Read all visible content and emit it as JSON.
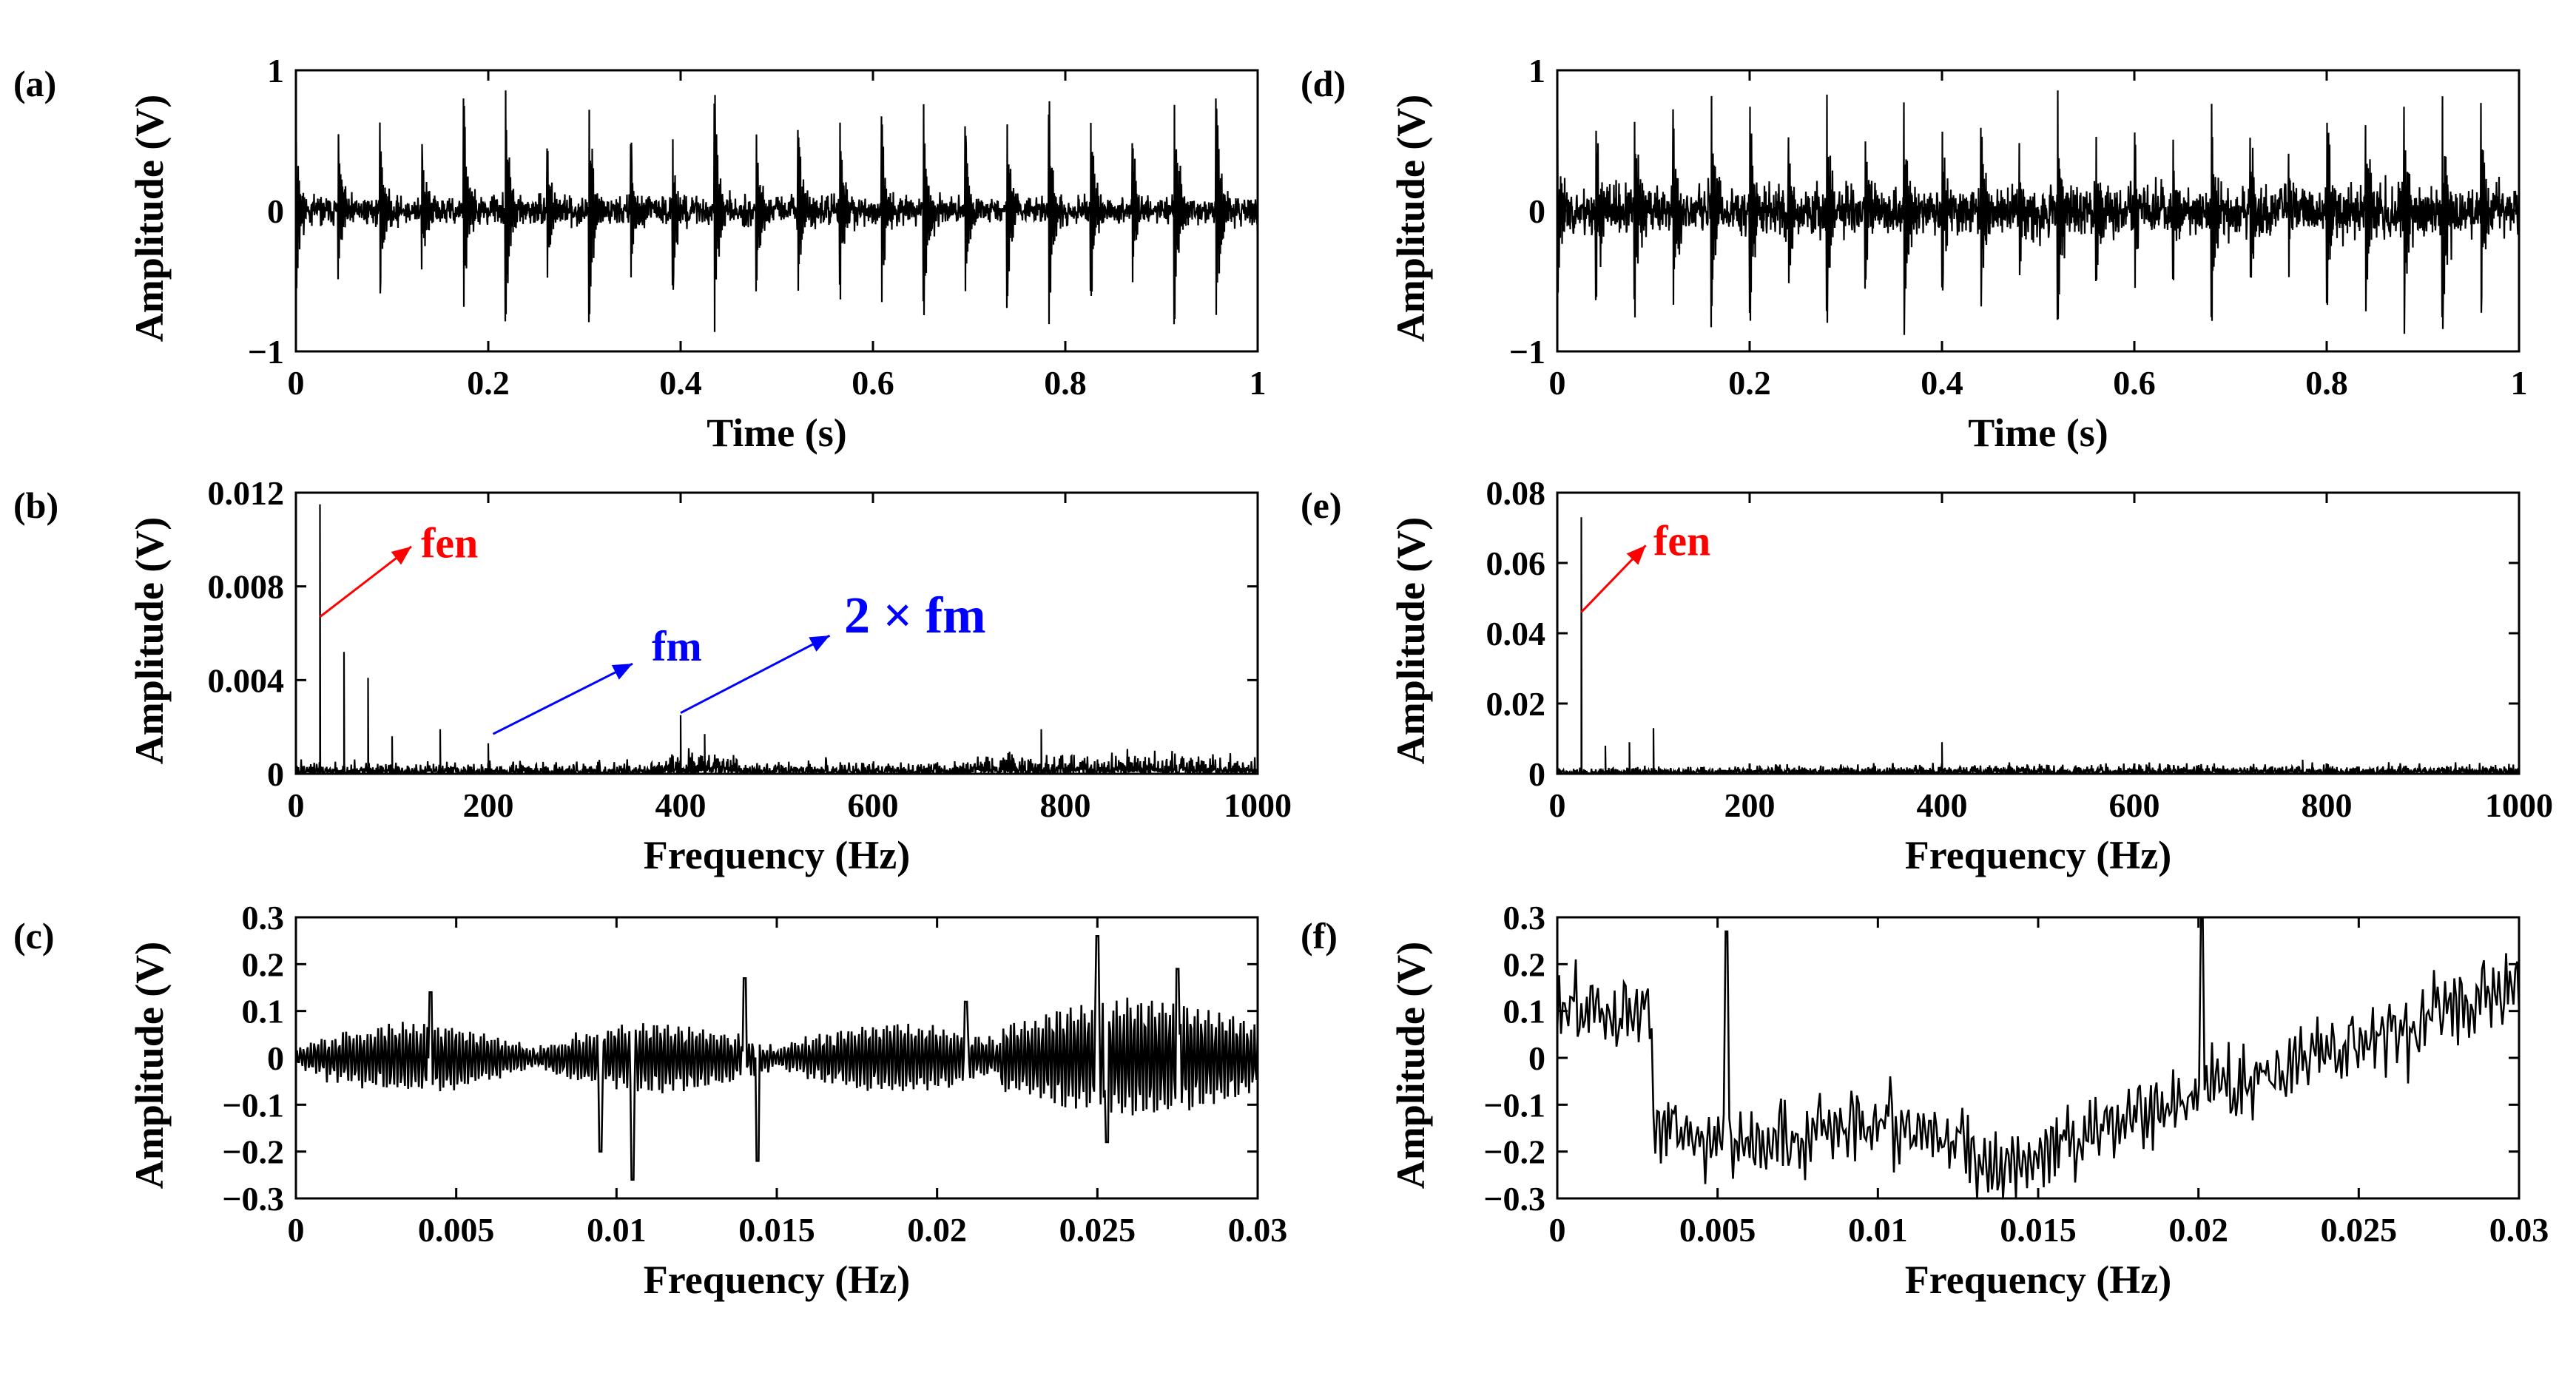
{
  "chart_data": [
    {
      "id": "a",
      "panel_label": "(a)",
      "type": "line",
      "signal": "impulse_train_time",
      "xlabel": "Time (s)",
      "ylabel": "Amplitude (V)",
      "xlim": [
        0,
        1
      ],
      "ylim": [
        -1,
        1
      ],
      "xticks": [
        0,
        0.2,
        0.4,
        0.6,
        0.8,
        1
      ],
      "xtick_labels": [
        "0",
        "0.2",
        "0.4",
        "0.6",
        "0.8",
        "1"
      ],
      "yticks": [
        -1,
        0,
        1
      ],
      "ytick_labels": [
        "−1",
        "0",
        "1"
      ],
      "annotations": []
    },
    {
      "id": "b",
      "panel_label": "(b)",
      "type": "line",
      "signal": "spectrum_low",
      "xlabel": "Frequency (Hz)",
      "ylabel": "Amplitude (V)",
      "xlim": [
        0,
        1000
      ],
      "ylim": [
        0,
        0.012
      ],
      "xticks": [
        0,
        200,
        400,
        600,
        800,
        1000
      ],
      "xtick_labels": [
        "0",
        "200",
        "400",
        "600",
        "800",
        "1000"
      ],
      "yticks": [
        0,
        0.004,
        0.008,
        0.012
      ],
      "ytick_labels": [
        "0",
        "0.004",
        "0.008",
        "0.012"
      ],
      "peaks": [
        {
          "x": 25,
          "y": 0.0115
        },
        {
          "x": 50,
          "y": 0.0052
        },
        {
          "x": 75,
          "y": 0.0041
        },
        {
          "x": 100,
          "y": 0.0016
        },
        {
          "x": 150,
          "y": 0.0019
        },
        {
          "x": 200,
          "y": 0.0013
        },
        {
          "x": 400,
          "y": 0.0025
        },
        {
          "x": 425,
          "y": 0.0017
        },
        {
          "x": 775,
          "y": 0.0019
        }
      ],
      "annotations": [
        {
          "text": "fen",
          "color": "#ff0000",
          "arrow_from": [
            25,
            0.0067
          ],
          "arrow_to": [
            120,
            0.0097
          ],
          "text_at": [
            130,
            0.0098
          ],
          "size": "normal"
        },
        {
          "text": "fm",
          "color": "#0000ff",
          "arrow_from": [
            205,
            0.0017
          ],
          "arrow_to": [
            350,
            0.0047
          ],
          "text_at": [
            370,
            0.0054
          ],
          "size": "normal"
        },
        {
          "text": "2 × fm",
          "color": "#0000ff",
          "arrow_from": [
            400,
            0.0026
          ],
          "arrow_to": [
            555,
            0.0059
          ],
          "text_at": [
            570,
            0.0066
          ],
          "size": "big"
        }
      ]
    },
    {
      "id": "c",
      "panel_label": "(c)",
      "type": "line",
      "signal": "fine_low",
      "xlabel": "Frequency (Hz)",
      "ylabel": "Amplitude (V)",
      "xlim": [
        0,
        0.03
      ],
      "ylim": [
        -0.3,
        0.3
      ],
      "xticks": [
        0,
        0.005,
        0.01,
        0.015,
        0.02,
        0.025,
        0.03
      ],
      "xtick_labels": [
        "0",
        "0.005",
        "0.01",
        "0.015",
        "0.02",
        "0.025",
        "0.03"
      ],
      "yticks": [
        -0.3,
        -0.2,
        -0.1,
        0,
        0.1,
        0.2,
        0.3
      ],
      "ytick_labels": [
        "−0.3",
        "−0.2",
        "−0.1",
        "0",
        "0.1",
        "0.2",
        "0.3"
      ],
      "annotations": []
    },
    {
      "id": "d",
      "panel_label": "(d)",
      "type": "line",
      "signal": "impulse_train_dense",
      "xlabel": "Time (s)",
      "ylabel": "Amplitude (V)",
      "xlim": [
        0,
        1
      ],
      "ylim": [
        -1,
        1
      ],
      "xticks": [
        0,
        0.2,
        0.4,
        0.6,
        0.8,
        1
      ],
      "xtick_labels": [
        "0",
        "0.2",
        "0.4",
        "0.6",
        "0.8",
        "1"
      ],
      "yticks": [
        -1,
        0,
        1
      ],
      "ytick_labels": [
        "−1",
        "0",
        "1"
      ],
      "annotations": []
    },
    {
      "id": "e",
      "panel_label": "(e)",
      "type": "line",
      "signal": "spectrum_high",
      "xlabel": "Frequency (Hz)",
      "ylabel": "Amplitude (V)",
      "xlim": [
        0,
        1000
      ],
      "ylim": [
        0,
        0.08
      ],
      "xticks": [
        0,
        200,
        400,
        600,
        800,
        1000
      ],
      "xtick_labels": [
        "0",
        "200",
        "400",
        "600",
        "800",
        "1000"
      ],
      "yticks": [
        0,
        0.02,
        0.04,
        0.06,
        0.08
      ],
      "ytick_labels": [
        "0",
        "0.02",
        "0.04",
        "0.06",
        "0.08"
      ],
      "peaks": [
        {
          "x": 25,
          "y": 0.073
        },
        {
          "x": 50,
          "y": 0.008
        },
        {
          "x": 75,
          "y": 0.009
        },
        {
          "x": 100,
          "y": 0.013
        },
        {
          "x": 400,
          "y": 0.009
        },
        {
          "x": 775,
          "y": 0.004
        }
      ],
      "annotations": [
        {
          "text": "fen",
          "color": "#ff0000",
          "arrow_from": [
            25,
            0.046
          ],
          "arrow_to": [
            92,
            0.065
          ],
          "text_at": [
            100,
            0.066
          ],
          "size": "normal"
        }
      ]
    },
    {
      "id": "f",
      "panel_label": "(f)",
      "type": "line",
      "signal": "fine_high",
      "xlabel": "Frequency (Hz)",
      "ylabel": "Amplitude (V)",
      "xlim": [
        0,
        0.03
      ],
      "ylim": [
        -0.3,
        0.3
      ],
      "xticks": [
        0,
        0.005,
        0.01,
        0.015,
        0.02,
        0.025,
        0.03
      ],
      "xtick_labels": [
        "0",
        "0.005",
        "0.01",
        "0.015",
        "0.02",
        "0.025",
        "0.03"
      ],
      "yticks": [
        -0.3,
        -0.2,
        -0.1,
        0,
        0.1,
        0.2,
        0.3
      ],
      "ytick_labels": [
        "−0.3",
        "−0.2",
        "−0.1",
        "0",
        "0.1",
        "0.2",
        "0.3"
      ],
      "annotations": []
    }
  ]
}
